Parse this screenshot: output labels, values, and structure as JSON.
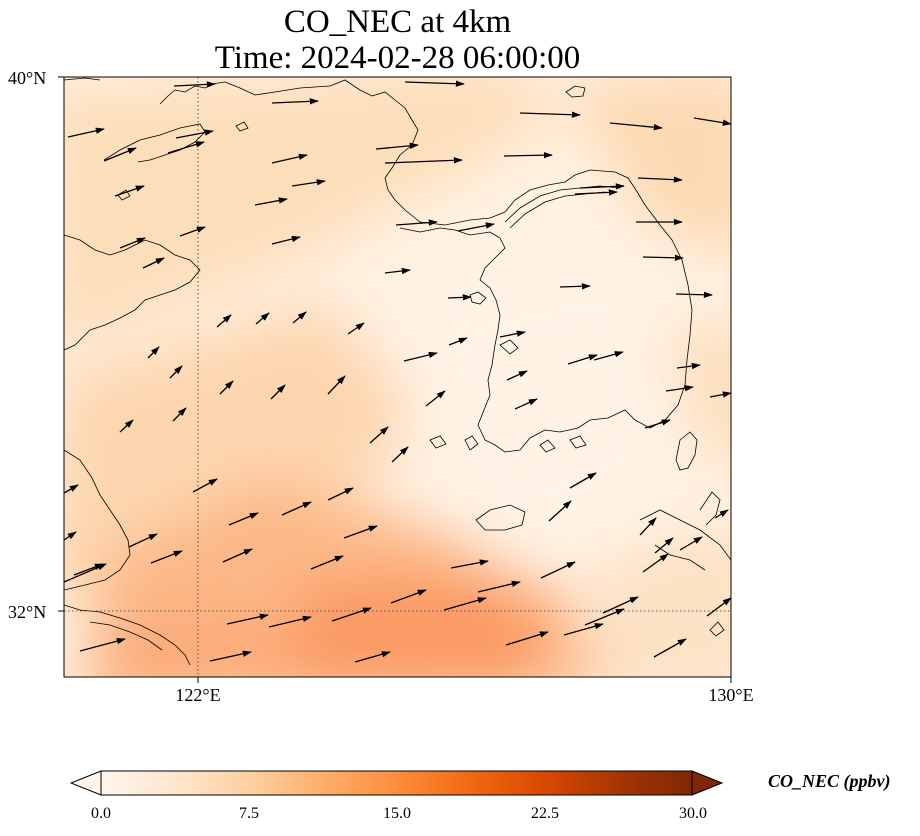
{
  "title_line1": "CO_NEC at 4km",
  "title_line2": "Time: 2024-02-28 06:00:00",
  "lat_labels": [
    "40°N",
    "32°N"
  ],
  "lon_labels": [
    "122°E",
    "130°E"
  ],
  "colorbar": {
    "label": "CO_NEC (ppbv)",
    "ticks": [
      "0.0",
      "7.5",
      "15.0",
      "22.5",
      "30.0"
    ],
    "min": 0,
    "max": 30,
    "colors": [
      "#fff5eb",
      "#fee6ce",
      "#fdd0a2",
      "#fdae6b",
      "#fd8d3c",
      "#f16913",
      "#d94801",
      "#a63603",
      "#7f2704"
    ]
  },
  "map_extent": {
    "lon": [
      120,
      130
    ],
    "lat": [
      31,
      40
    ]
  },
  "gridlines": {
    "lon": [
      122
    ],
    "lat": [
      32
    ],
    "style": "dotted"
  },
  "icons": [
    "wind-arrow-icon"
  ]
}
